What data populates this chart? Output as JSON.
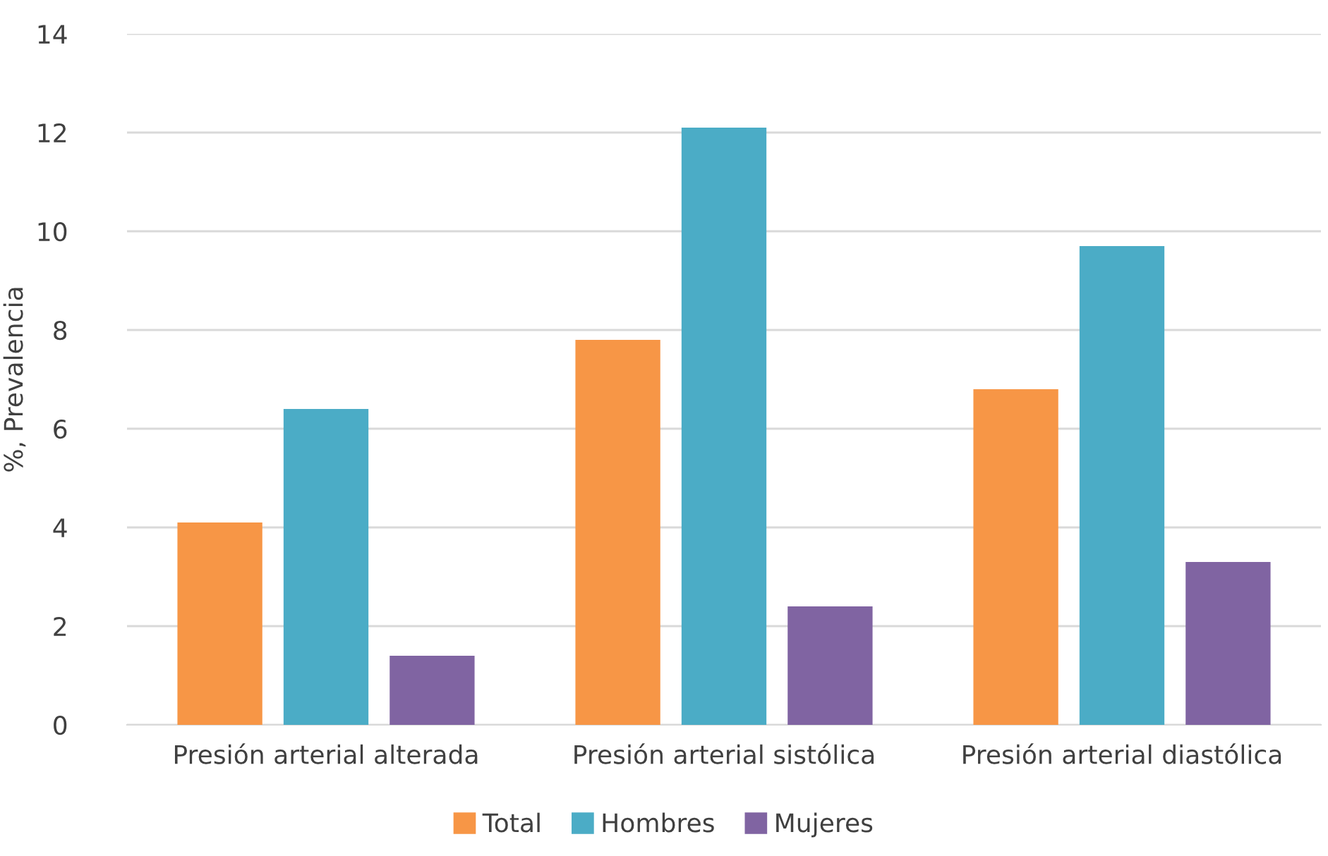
{
  "chart_data": {
    "type": "bar",
    "ylabel": "%, Prevalencia",
    "categories": [
      "Presión arterial alterada",
      "Presión arterial sistólica",
      "Presión arterial diastólica"
    ],
    "series": [
      {
        "name": "Total",
        "color": "#f79646",
        "values": [
          4.1,
          7.8,
          6.8
        ]
      },
      {
        "name": "Hombres",
        "color": "#4bacc6",
        "values": [
          6.4,
          12.1,
          9.7
        ]
      },
      {
        "name": "Mujeres",
        "color": "#8064a2",
        "values": [
          1.4,
          2.4,
          3.3
        ]
      }
    ],
    "ylim": [
      0,
      14
    ],
    "yticks": [
      0,
      2,
      4,
      6,
      8,
      10,
      12,
      14
    ],
    "grid": "y",
    "legend": "bottom"
  }
}
